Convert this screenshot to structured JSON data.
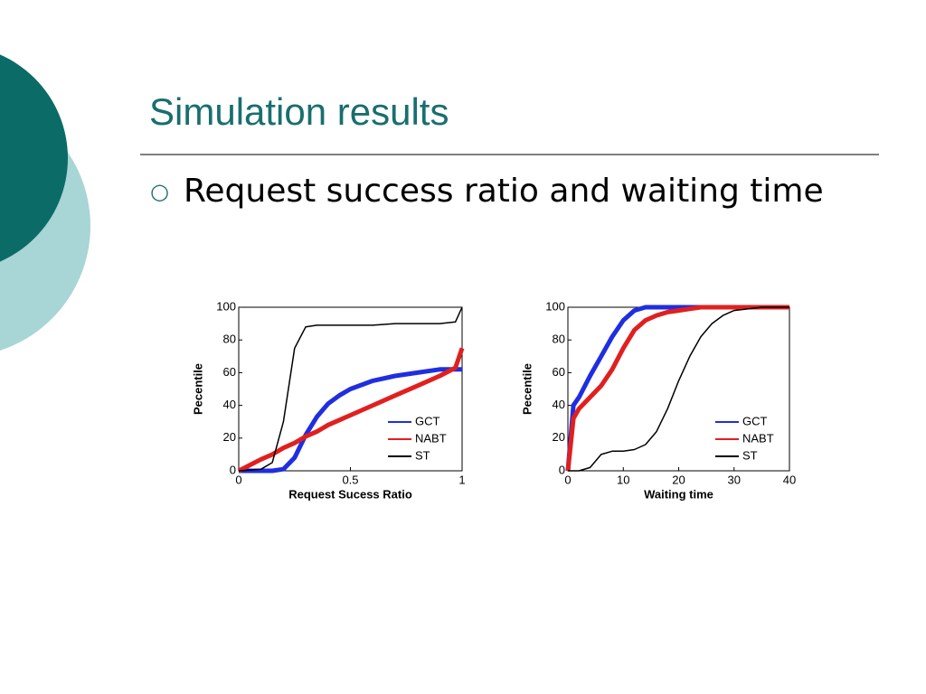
{
  "slide": {
    "title": "Simulation results",
    "bullet": "Request success ratio and waiting time"
  },
  "chart_data": [
    {
      "type": "line",
      "xlabel": "Request Sucess Ratio",
      "ylabel": "Pecentile",
      "x": [
        0,
        0.1,
        0.15,
        0.2,
        0.25,
        0.3,
        0.35,
        0.4,
        0.45,
        0.5,
        0.6,
        0.7,
        0.8,
        0.9,
        0.97,
        1
      ],
      "series": [
        {
          "name": "GCT",
          "color": "#1f2ee0",
          "values": [
            0,
            0,
            0,
            1,
            8,
            22,
            33,
            41,
            46,
            50,
            55,
            58,
            60,
            62,
            62,
            62
          ]
        },
        {
          "name": "NABT",
          "color": "#e0201f",
          "values": [
            0,
            7,
            10,
            14,
            17,
            21,
            24,
            28,
            31,
            34,
            40,
            46,
            52,
            58,
            63,
            75
          ]
        },
        {
          "name": "ST",
          "color": "#000000",
          "values": [
            0,
            1,
            5,
            30,
            75,
            88,
            89,
            89,
            89,
            89,
            89,
            90,
            90,
            90,
            91,
            100
          ]
        }
      ],
      "xlim": [
        0,
        1
      ],
      "xticks": [
        0,
        0.5,
        1
      ],
      "ylim": [
        0,
        100
      ],
      "yticks": [
        0,
        20,
        40,
        60,
        80,
        100
      ],
      "legend": "lower right"
    },
    {
      "type": "line",
      "xlabel": "Waiting time",
      "ylabel": "Pecentile",
      "x": [
        0,
        1,
        2,
        4,
        6,
        8,
        10,
        12,
        14,
        16,
        18,
        20,
        22,
        24,
        26,
        28,
        30,
        35,
        40
      ],
      "series": [
        {
          "name": "GCT",
          "color": "#1f2ee0",
          "values": [
            0,
            40,
            45,
            58,
            70,
            82,
            92,
            98,
            100,
            100,
            100,
            100,
            100,
            100,
            100,
            100,
            100,
            100,
            100
          ]
        },
        {
          "name": "NABT",
          "color": "#e0201f",
          "values": [
            0,
            32,
            38,
            45,
            52,
            62,
            75,
            86,
            92,
            95,
            97,
            98,
            99,
            100,
            100,
            100,
            100,
            100,
            100
          ]
        },
        {
          "name": "ST",
          "color": "#000000",
          "values": [
            0,
            0,
            0,
            2,
            10,
            12,
            12,
            13,
            16,
            24,
            38,
            55,
            70,
            82,
            90,
            95,
            98,
            100,
            100
          ]
        }
      ],
      "xlim": [
        0,
        40
      ],
      "xticks": [
        0,
        10,
        20,
        30,
        40
      ],
      "ylim": [
        0,
        100
      ],
      "yticks": [
        0,
        20,
        40,
        60,
        80,
        100
      ],
      "legend": "lower right"
    }
  ]
}
